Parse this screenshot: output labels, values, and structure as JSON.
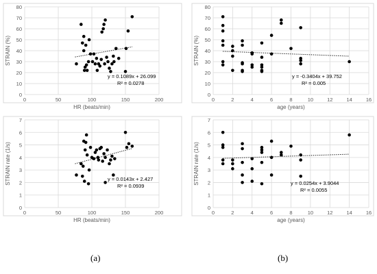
{
  "panel_labels": [
    "(a)",
    "(b)"
  ],
  "chart_data": [
    {
      "type": "scatter",
      "xlabel": "HR (beats/min)",
      "ylabel": "STRAIN (%)",
      "xlim": [
        0,
        200
      ],
      "ylim": [
        0,
        80
      ],
      "xticks": [
        "0",
        "50",
        "100",
        "150",
        "200"
      ],
      "yticks": [
        "0",
        "10",
        "20",
        "30",
        "40",
        "50",
        "60",
        "70",
        "80"
      ],
      "grid": "on",
      "trendline_equation": "y = 0.1089x + 26.099",
      "r_squared": "R² = 0.0278",
      "trend": {
        "slope": 0.1089,
        "intercept": 26.099,
        "x_range": [
          75,
          160
        ]
      },
      "points": [
        [
          77,
          28
        ],
        [
          84,
          64
        ],
        [
          86,
          47
        ],
        [
          88,
          53
        ],
        [
          88,
          40
        ],
        [
          90,
          25
        ],
        [
          89,
          22
        ],
        [
          91,
          45
        ],
        [
          92,
          27
        ],
        [
          93,
          22
        ],
        [
          95,
          30
        ],
        [
          96,
          50
        ],
        [
          98,
          37
        ],
        [
          101,
          30
        ],
        [
          103,
          37
        ],
        [
          105,
          28
        ],
        [
          107,
          33
        ],
        [
          108,
          22
        ],
        [
          110,
          28
        ],
        [
          112,
          26
        ],
        [
          114,
          32
        ],
        [
          115,
          57
        ],
        [
          117,
          60
        ],
        [
          118,
          64
        ],
        [
          119,
          28
        ],
        [
          120,
          68
        ],
        [
          122,
          34
        ],
        [
          124,
          30
        ],
        [
          126,
          24
        ],
        [
          128,
          21
        ],
        [
          130,
          28
        ],
        [
          132,
          35
        ],
        [
          133,
          30
        ],
        [
          136,
          42
        ],
        [
          140,
          33
        ],
        [
          150,
          21
        ],
        [
          151,
          42
        ],
        [
          154,
          58
        ],
        [
          160,
          71
        ]
      ]
    },
    {
      "type": "scatter",
      "xlabel": "age (years)",
      "ylabel": "STRAIN (%)",
      "xlim": [
        0,
        16
      ],
      "ylim": [
        0,
        80
      ],
      "xticks": [
        "0",
        "2",
        "4",
        "6",
        "8",
        "10",
        "12",
        "14",
        "16"
      ],
      "yticks": [
        "0",
        "10",
        "20",
        "30",
        "40",
        "50",
        "60",
        "70",
        "80"
      ],
      "grid": "on",
      "trendline_equation": "y = -0.3404x + 39.752",
      "r_squared": "R² = 0.005",
      "trend": {
        "slope": -0.3404,
        "intercept": 39.752,
        "x_range": [
          1,
          14
        ]
      },
      "points": [
        [
          1,
          71
        ],
        [
          1,
          63
        ],
        [
          1,
          58
        ],
        [
          1,
          49
        ],
        [
          1,
          45
        ],
        [
          1,
          30
        ],
        [
          1,
          27
        ],
        [
          2,
          44
        ],
        [
          2,
          40
        ],
        [
          2,
          35
        ],
        [
          2,
          22
        ],
        [
          3,
          49
        ],
        [
          3,
          45
        ],
        [
          3,
          29
        ],
        [
          3,
          28
        ],
        [
          3,
          22
        ],
        [
          3,
          21
        ],
        [
          4,
          38
        ],
        [
          4,
          37
        ],
        [
          4,
          27
        ],
        [
          4,
          25
        ],
        [
          5,
          47
        ],
        [
          5,
          34
        ],
        [
          5,
          27
        ],
        [
          5,
          25
        ],
        [
          5,
          22
        ],
        [
          5,
          21
        ],
        [
          6,
          54
        ],
        [
          6,
          37
        ],
        [
          7,
          68
        ],
        [
          7,
          65
        ],
        [
          8,
          42
        ],
        [
          9,
          61
        ],
        [
          9,
          33
        ],
        [
          9,
          31
        ],
        [
          9,
          28
        ],
        [
          14,
          30
        ]
      ]
    },
    {
      "type": "scatter",
      "xlabel": "HR (beats/min)",
      "ylabel": "STRAIN rate (1/s)",
      "xlim": [
        0,
        200
      ],
      "ylim": [
        0,
        7
      ],
      "xticks": [
        "0",
        "50",
        "100",
        "150",
        "200"
      ],
      "yticks": [
        "0",
        "1",
        "2",
        "3",
        "4",
        "5",
        "6",
        "7"
      ],
      "grid": "on",
      "trendline_equation": "y = 0.0143x + 2.427",
      "r_squared": "R² = 0.0939",
      "trend": {
        "slope": 0.0143,
        "intercept": 2.427,
        "x_range": [
          75,
          160
        ]
      },
      "points": [
        [
          77,
          2.6
        ],
        [
          84,
          3.5
        ],
        [
          86,
          2.5
        ],
        [
          87,
          3.3
        ],
        [
          88,
          5.3
        ],
        [
          89,
          2.1
        ],
        [
          90,
          4.6
        ],
        [
          91,
          5.2
        ],
        [
          92,
          5.8
        ],
        [
          93,
          4.2
        ],
        [
          95,
          1.9
        ],
        [
          96,
          3.0
        ],
        [
          98,
          4.8
        ],
        [
          100,
          4.0
        ],
        [
          103,
          3.9
        ],
        [
          105,
          4.4
        ],
        [
          107,
          4.6
        ],
        [
          109,
          4.0
        ],
        [
          110,
          3.8
        ],
        [
          112,
          4.7
        ],
        [
          114,
          4.8
        ],
        [
          116,
          3.7
        ],
        [
          118,
          4.3
        ],
        [
          120,
          4.0
        ],
        [
          120,
          2.0
        ],
        [
          123,
          4.6
        ],
        [
          126,
          3.5
        ],
        [
          128,
          3.8
        ],
        [
          130,
          4.1
        ],
        [
          132,
          2.6
        ],
        [
          134,
          3.9
        ],
        [
          150,
          6.0
        ],
        [
          152,
          4.8
        ],
        [
          155,
          5.1
        ],
        [
          160,
          4.9
        ]
      ]
    },
    {
      "type": "scatter",
      "xlabel": "age (years)",
      "ylabel": "STRAIN rate (1/s)",
      "xlim": [
        0,
        16
      ],
      "ylim": [
        0,
        7
      ],
      "xticks": [
        "0",
        "2",
        "4",
        "6",
        "8",
        "10",
        "12",
        "14",
        "16"
      ],
      "yticks": [
        "0",
        "1",
        "2",
        "3",
        "4",
        "5",
        "6",
        "7"
      ],
      "grid": "on",
      "trendline_equation": "y = 0.0254x + 3.9044",
      "r_squared": "R² = 0.0055",
      "trend": {
        "slope": 0.0254,
        "intercept": 3.9044,
        "x_range": [
          1,
          14
        ]
      },
      "points": [
        [
          1,
          6.0
        ],
        [
          1,
          5.0
        ],
        [
          1,
          4.8
        ],
        [
          1,
          3.8
        ],
        [
          1,
          3.5
        ],
        [
          2,
          3.8
        ],
        [
          2,
          3.5
        ],
        [
          2,
          3.1
        ],
        [
          3,
          5.1
        ],
        [
          3,
          4.7
        ],
        [
          3,
          3.6
        ],
        [
          3,
          2.6
        ],
        [
          3,
          2.0
        ],
        [
          4,
          3.9
        ],
        [
          4,
          3.1
        ],
        [
          4,
          2.1
        ],
        [
          5,
          4.8
        ],
        [
          5,
          4.6
        ],
        [
          5,
          4.4
        ],
        [
          5,
          3.6
        ],
        [
          5,
          1.9
        ],
        [
          6,
          5.3
        ],
        [
          6,
          4.0
        ],
        [
          6,
          2.6
        ],
        [
          7,
          4.4
        ],
        [
          7,
          4.2
        ],
        [
          8,
          4.9
        ],
        [
          9,
          4.2
        ],
        [
          9,
          3.8
        ],
        [
          9,
          2.5
        ],
        [
          14,
          5.8
        ]
      ]
    }
  ]
}
